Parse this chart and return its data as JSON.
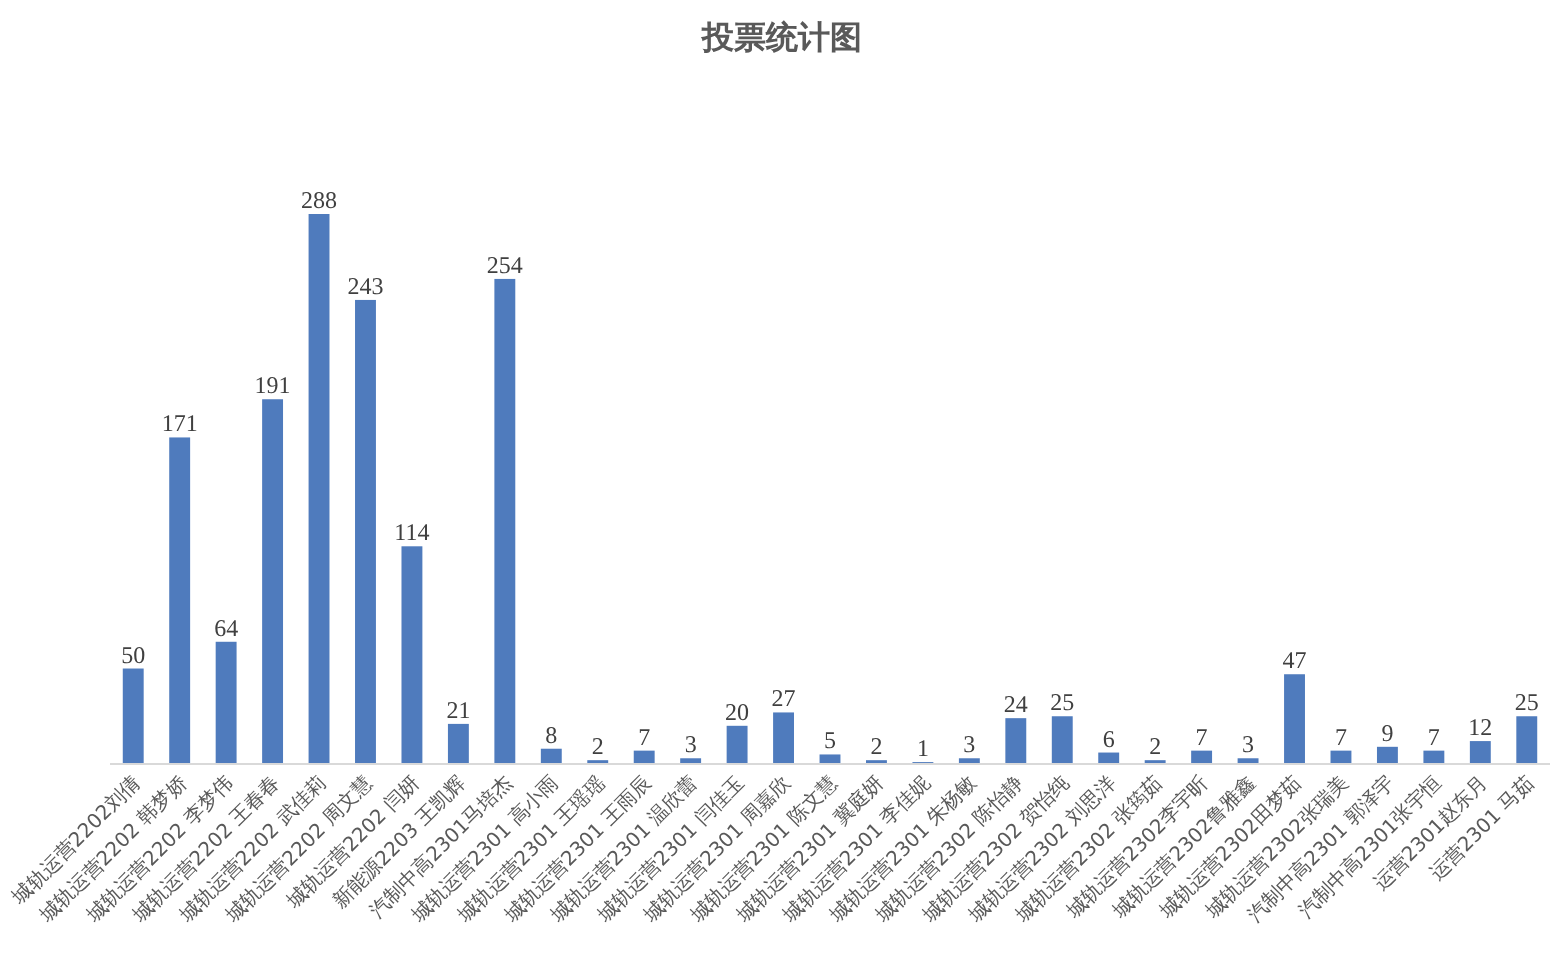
{
  "chart_data": {
    "type": "bar",
    "title": "投票统计图",
    "categories": [
      "城轨运营2202刘倩",
      "城轨运营2202 韩梦娇",
      "城轨运营2202 李梦伟",
      "城轨运营2202 王春春",
      "城轨运营2202 武佳莉",
      "城轨运营2202 周文慧",
      "城轨运营2202 闫妍",
      "新能源2203 王凯辉",
      "汽制中高2301马培杰",
      "城轨运营2301 高小雨",
      "城轨运营2301 王瑶瑶",
      "城轨运营2301 王雨辰",
      "城轨运营2301 温欣蕾",
      "城轨运营2301 闫佳玉",
      "城轨运营2301 周嘉欣",
      "城轨运营2301 陈文慧",
      "城轨运营2301 冀庭妍",
      "城轨运营2301 李佳妮",
      "城轨运营2301 朱杨敏",
      "城轨运营2302 陈怡静",
      "城轨运营2302 贺怡纯",
      "城轨运营2302 刘思洋",
      "城轨运营2302 张筠茹",
      "城轨运营2302李宇昕",
      "城轨运营2302鲁雅鑫",
      "城轨运营2302田梦茹",
      "城轨运营2302张瑞美",
      "汽制中高2301 郭泽宇",
      "汽制中高2301张宇恒",
      "运营2301赵东月",
      "运营2301 马茹"
    ],
    "values": [
      50,
      171,
      64,
      191,
      288,
      243,
      114,
      21,
      254,
      8,
      2,
      7,
      3,
      20,
      27,
      5,
      2,
      1,
      3,
      24,
      25,
      6,
      2,
      7,
      3,
      47,
      7,
      9,
      7,
      12,
      25
    ],
    "color": "#4f7bbd",
    "data_labels": true
  }
}
